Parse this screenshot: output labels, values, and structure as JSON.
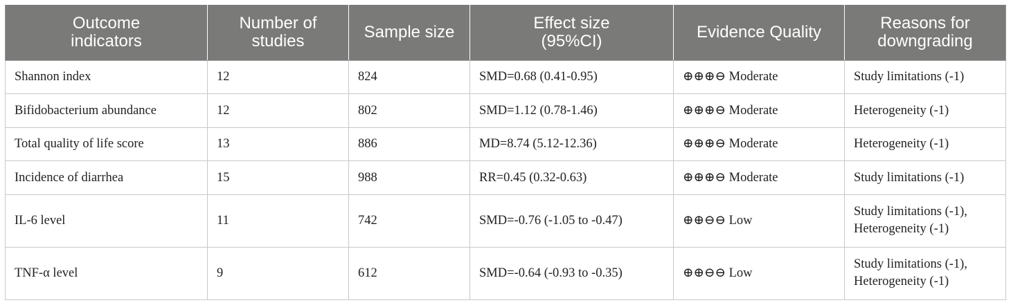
{
  "table": {
    "headers": [
      "Outcome indicators",
      "Number of studies",
      "Sample size",
      "Effect size (95%CI)",
      "Evidence Quality",
      "Reasons for downgrading"
    ],
    "header_lines": [
      [
        "Outcome",
        "indicators"
      ],
      [
        "Number of",
        "studies"
      ],
      [
        "Sample size"
      ],
      [
        "Effect size",
        "(95%CI)"
      ],
      [
        "Evidence Quality"
      ],
      [
        "Reasons for",
        "downgrading"
      ]
    ],
    "rows": [
      {
        "outcome": "Shannon index",
        "studies": "12",
        "sample": "824",
        "effect": "SMD=0.68 (0.41-0.95)",
        "quality": "⊕⊕⊕⊖ Moderate",
        "reasons": [
          "Study limitations (-1)"
        ]
      },
      {
        "outcome": "Bifidobacterium abundance",
        "studies": "12",
        "sample": "802",
        "effect": "SMD=1.12 (0.78-1.46)",
        "quality": "⊕⊕⊕⊖ Moderate",
        "reasons": [
          "Heterogeneity (-1)"
        ]
      },
      {
        "outcome": "Total quality of life score",
        "studies": "13",
        "sample": "886",
        "effect": "MD=8.74 (5.12-12.36)",
        "quality": "⊕⊕⊕⊖ Moderate",
        "reasons": [
          "Heterogeneity (-1)"
        ]
      },
      {
        "outcome": "Incidence of diarrhea",
        "studies": "15",
        "sample": "988",
        "effect": "RR=0.45 (0.32-0.63)",
        "quality": "⊕⊕⊕⊖ Moderate",
        "reasons": [
          "Study limitations (-1)"
        ]
      },
      {
        "outcome": "IL-6 level",
        "studies": "11",
        "sample": "742",
        "effect": "SMD=-0.76 (-1.05 to -0.47)",
        "quality": "⊕⊕⊖⊖ Low",
        "reasons": [
          "Study limitations (-1),",
          "Heterogeneity (-1)"
        ]
      },
      {
        "outcome": "TNF-α level",
        "studies": "9",
        "sample": "612",
        "effect": "SMD=-0.64 (-0.93 to -0.35)",
        "quality": "⊕⊕⊖⊖ Low",
        "reasons": [
          "Study limitations (-1),",
          "Heterogeneity (-1)"
        ]
      }
    ]
  },
  "colors": {
    "header_background": "#7a7a79",
    "header_text": "#ffffff",
    "body_text": "#222222",
    "grid_line": "#c8c8c8"
  }
}
